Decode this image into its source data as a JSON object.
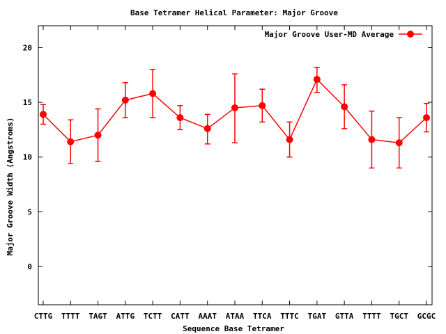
{
  "chart_data": {
    "type": "line",
    "title": "Base Tetramer Helical Parameter: Major Groove",
    "xlabel": "Sequence Base Tetramer",
    "ylabel": "Major Groove Width (Angstroms)",
    "ylim": [
      -3.5,
      22
    ],
    "yticks": [
      0,
      5,
      10,
      15,
      20
    ],
    "categories": [
      "CTTG",
      "TTTT",
      "TAGT",
      "ATTG",
      "TCTT",
      "CATT",
      "AAAT",
      "ATAA",
      "TTCA",
      "TTTC",
      "TGAT",
      "GTTA",
      "TTTT",
      "TGCT",
      "GCGC"
    ],
    "legend_position": "top-right",
    "grid": false,
    "series": [
      {
        "name": "Major Groove User-MD Average",
        "color": "#ff0000",
        "values": [
          13.9,
          11.4,
          12.0,
          15.2,
          15.8,
          13.6,
          12.6,
          14.5,
          14.7,
          11.6,
          17.1,
          14.6,
          11.6,
          11.3,
          13.6
        ],
        "err_low": [
          13.0,
          9.4,
          9.6,
          13.6,
          13.6,
          12.5,
          11.2,
          11.3,
          13.2,
          10.0,
          15.9,
          12.6,
          9.0,
          9.0,
          12.3
        ],
        "err_high": [
          14.8,
          13.4,
          14.4,
          16.8,
          18.0,
          14.7,
          13.9,
          17.6,
          16.2,
          13.2,
          18.2,
          16.6,
          14.2,
          13.6,
          14.9
        ]
      }
    ]
  }
}
